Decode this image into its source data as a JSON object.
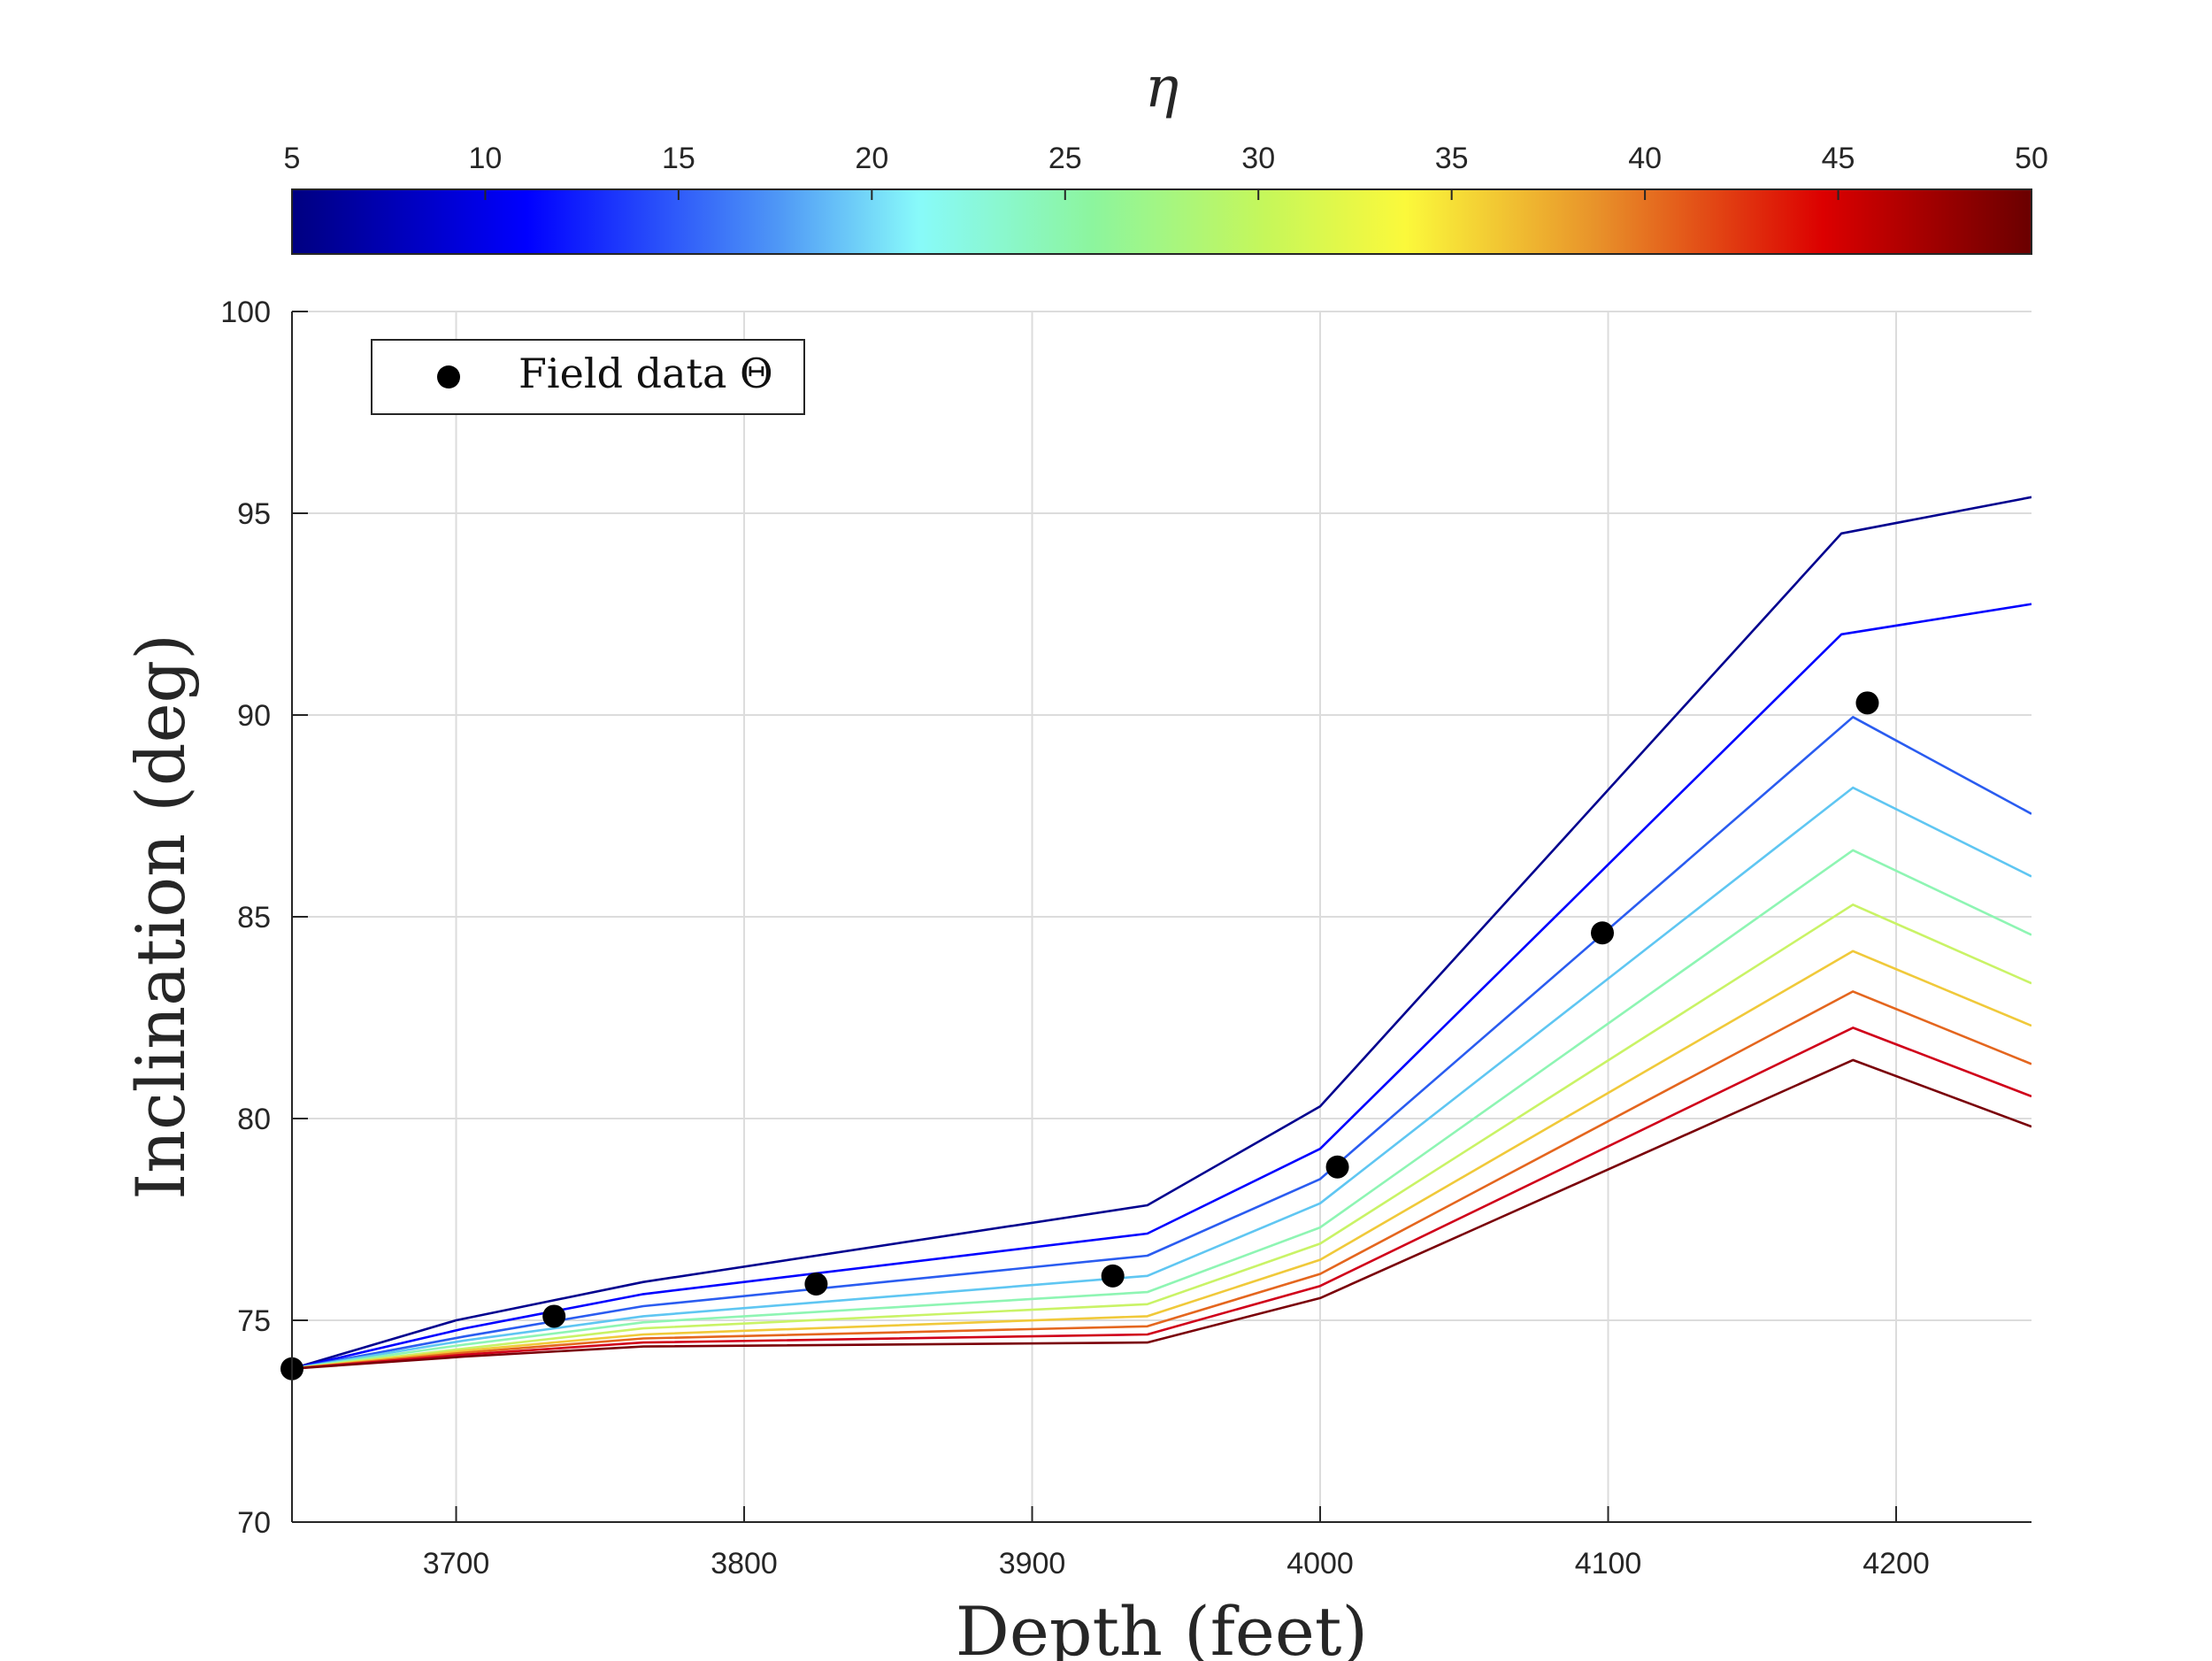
{
  "chart_data": {
    "type": "line",
    "xlabel": "Depth (feet)",
    "ylabel": "Inclination (deg)",
    "xlim": [
      3643,
      4247
    ],
    "ylim": [
      70,
      100
    ],
    "xticks": [
      3700,
      3800,
      3900,
      4000,
      4100,
      4200
    ],
    "yticks": [
      70,
      75,
      80,
      85,
      90,
      95,
      100
    ],
    "grid": true,
    "colorbar": {
      "title": "η",
      "orientation": "horizontal",
      "location": "top",
      "range": [
        5,
        50
      ],
      "ticks": [
        5,
        10,
        15,
        20,
        25,
        30,
        35,
        40,
        45,
        50
      ],
      "colormap": "jet"
    },
    "legend": {
      "placement": "top-left",
      "entries": [
        "Field data Θ"
      ]
    },
    "series": [
      {
        "eta": 5,
        "color": "#00008f",
        "points": [
          [
            3643,
            73.8
          ],
          [
            3700,
            75.0
          ],
          [
            3765,
            75.95
          ],
          [
            3940,
            77.85
          ],
          [
            4000,
            80.3
          ],
          [
            4181,
            94.5
          ],
          [
            4247,
            95.4
          ]
        ]
      },
      {
        "eta": 10,
        "color": "#0000ff",
        "points": [
          [
            3643,
            73.8
          ],
          [
            3703,
            74.8
          ],
          [
            3765,
            75.65
          ],
          [
            3940,
            77.15
          ],
          [
            4000,
            79.25
          ],
          [
            4181,
            92.0
          ],
          [
            4247,
            92.75
          ]
        ]
      },
      {
        "eta": 15,
        "color": "#2a5cf0",
        "points": [
          [
            3643,
            73.8
          ],
          [
            3703,
            74.6
          ],
          [
            3765,
            75.35
          ],
          [
            3940,
            76.6
          ],
          [
            4000,
            78.5
          ],
          [
            4185,
            89.95
          ],
          [
            4247,
            87.55
          ]
        ]
      },
      {
        "eta": 20,
        "color": "#5fc6f2",
        "points": [
          [
            3643,
            73.8
          ],
          [
            3703,
            74.5
          ],
          [
            3765,
            75.1
          ],
          [
            3940,
            76.1
          ],
          [
            4000,
            77.9
          ],
          [
            4185,
            88.2
          ],
          [
            4247,
            86.0
          ]
        ]
      },
      {
        "eta": 25,
        "color": "#8ef5b3",
        "points": [
          [
            3643,
            73.8
          ],
          [
            3703,
            74.4
          ],
          [
            3765,
            74.95
          ],
          [
            3940,
            75.7
          ],
          [
            4000,
            77.3
          ],
          [
            4185,
            86.65
          ],
          [
            4247,
            84.55
          ]
        ]
      },
      {
        "eta": 30,
        "color": "#c9f366",
        "points": [
          [
            3643,
            73.8
          ],
          [
            3703,
            74.3
          ],
          [
            3765,
            74.8
          ],
          [
            3940,
            75.4
          ],
          [
            4000,
            76.9
          ],
          [
            4185,
            85.3
          ],
          [
            4247,
            83.35
          ]
        ]
      },
      {
        "eta": 35,
        "color": "#f0c93a",
        "points": [
          [
            3643,
            73.8
          ],
          [
            3703,
            74.25
          ],
          [
            3765,
            74.65
          ],
          [
            3940,
            75.1
          ],
          [
            4000,
            76.5
          ],
          [
            4185,
            84.15
          ],
          [
            4247,
            82.3
          ]
        ]
      },
      {
        "eta": 40,
        "color": "#e4661e",
        "points": [
          [
            3643,
            73.8
          ],
          [
            3703,
            74.2
          ],
          [
            3765,
            74.55
          ],
          [
            3940,
            74.85
          ],
          [
            4000,
            76.15
          ],
          [
            4185,
            83.15
          ],
          [
            4247,
            81.35
          ]
        ]
      },
      {
        "eta": 45,
        "color": "#d0001a",
        "points": [
          [
            3643,
            73.8
          ],
          [
            3703,
            74.15
          ],
          [
            3765,
            74.45
          ],
          [
            3940,
            74.65
          ],
          [
            4000,
            75.85
          ],
          [
            4185,
            82.25
          ],
          [
            4247,
            80.55
          ]
        ]
      },
      {
        "eta": 50,
        "color": "#7a0008",
        "points": [
          [
            3643,
            73.8
          ],
          [
            3703,
            74.1
          ],
          [
            3765,
            74.35
          ],
          [
            3940,
            74.45
          ],
          [
            4000,
            75.55
          ],
          [
            4185,
            81.45
          ],
          [
            4247,
            79.8
          ]
        ]
      }
    ],
    "field_data": {
      "name": "Field data Θ",
      "x": [
        3643,
        3734,
        3825,
        3928,
        4006,
        4098,
        4190
      ],
      "y": [
        73.8,
        75.1,
        75.9,
        76.1,
        78.8,
        84.6,
        90.3
      ]
    }
  }
}
